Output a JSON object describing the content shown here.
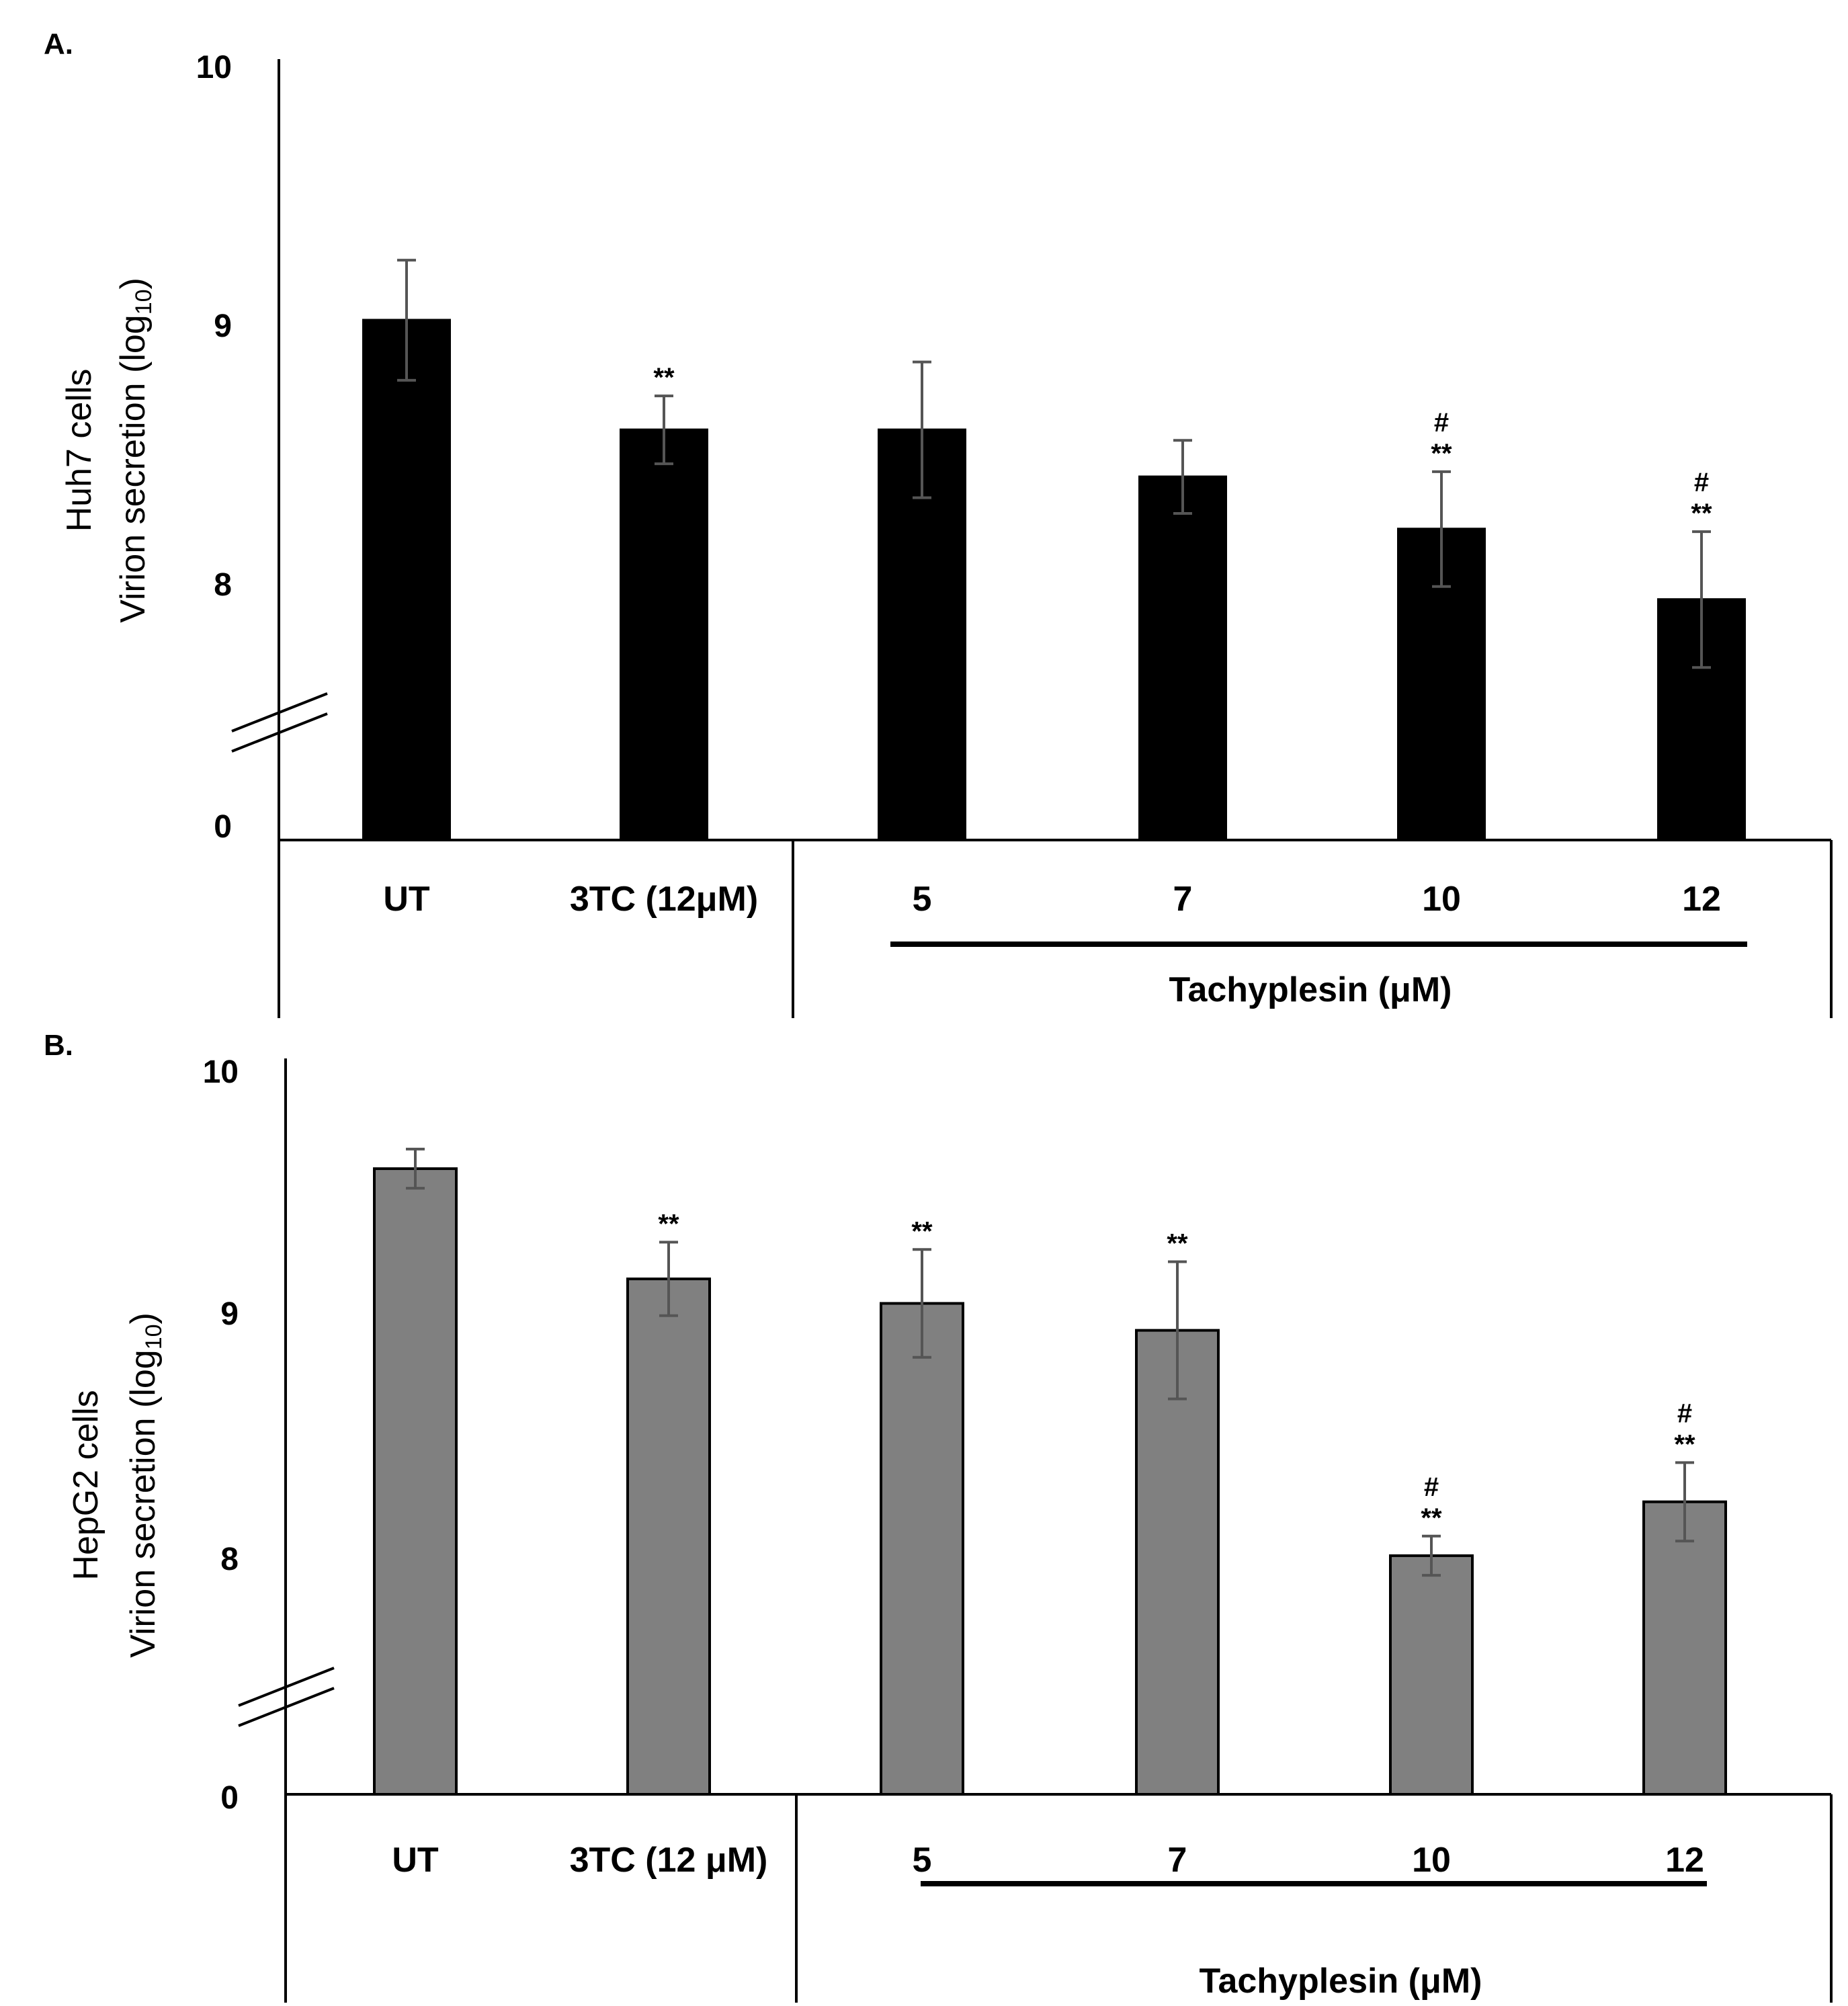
{
  "chart_data": [
    {
      "panel_label": "A.",
      "type": "bar",
      "cell_line": "Huh7 cells",
      "ylabel_main": "Virion secretion (log",
      "ylabel_sub": "10",
      "ylabel_close": ")",
      "yticks": [
        "10",
        "9",
        "8",
        "0"
      ],
      "ylim": [
        0,
        10
      ],
      "axis_break": true,
      "bar_color": "#000000",
      "categories": [
        "UT",
        "3TC (12μM)",
        "5",
        "7",
        "10",
        "12"
      ],
      "group_label": "Tachyplesin  (μM)",
      "values": [
        9.0,
        8.58,
        8.58,
        8.4,
        8.2,
        7.93
      ],
      "errors": [
        0.23,
        0.13,
        0.26,
        0.14,
        0.22,
        0.26
      ],
      "significance": [
        [],
        [
          "**"
        ],
        [],
        [],
        [
          "#",
          "**"
        ],
        [
          "#",
          "**"
        ]
      ]
    },
    {
      "panel_label": "B.",
      "type": "bar",
      "cell_line": "HepG2 cells",
      "ylabel_main": "Virion secretion (log",
      "ylabel_sub": "10",
      "ylabel_close": ")",
      "yticks": [
        "10",
        "9",
        "8",
        "0"
      ],
      "ylim": [
        0,
        10
      ],
      "axis_break": true,
      "bar_color": "#808080",
      "categories": [
        "UT",
        "3TC (12 μM)",
        "5",
        "7",
        "10",
        "12"
      ],
      "group_label": "Tachyplesin (μM)",
      "values": [
        9.55,
        9.1,
        9.0,
        8.89,
        7.97,
        8.19
      ],
      "errors": [
        0.08,
        0.15,
        0.22,
        0.28,
        0.08,
        0.16
      ],
      "significance": [
        [],
        [
          "**"
        ],
        [
          "**"
        ],
        [
          "**"
        ],
        [
          "#",
          "**"
        ],
        [
          "#",
          "**"
        ]
      ]
    }
  ]
}
